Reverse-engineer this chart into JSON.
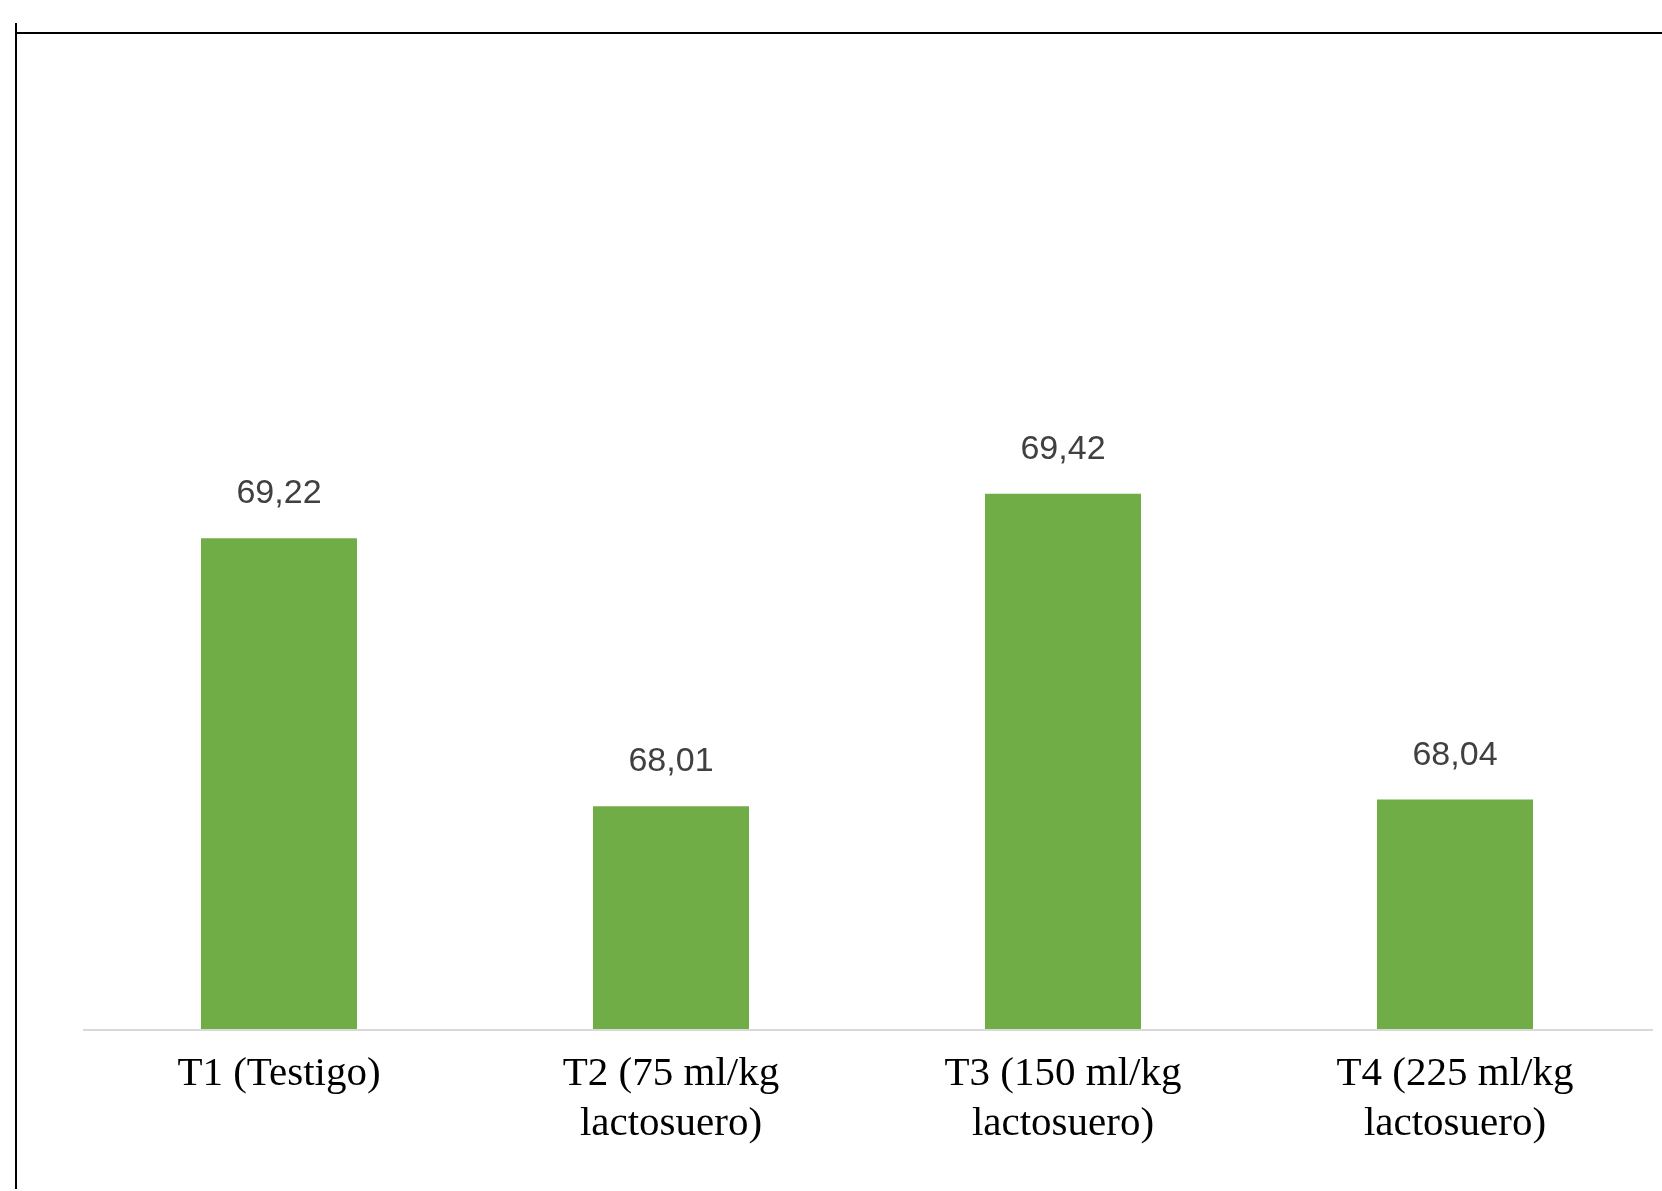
{
  "chart_data": {
    "type": "bar",
    "categories": [
      "T1 (Testigo)",
      "T2 (75 ml/kg lactosuero)",
      "T3 (150 ml/kg lactosuero)",
      "T4 (225 ml/kg lactosuero)"
    ],
    "values": [
      69.22,
      68.01,
      69.42,
      68.04
    ],
    "value_labels": [
      "69,22",
      "68,01",
      "69,42",
      "68,04"
    ],
    "color": "#70ad47",
    "ylim": [
      67,
      71.5
    ],
    "tick_labels": "x"
  }
}
